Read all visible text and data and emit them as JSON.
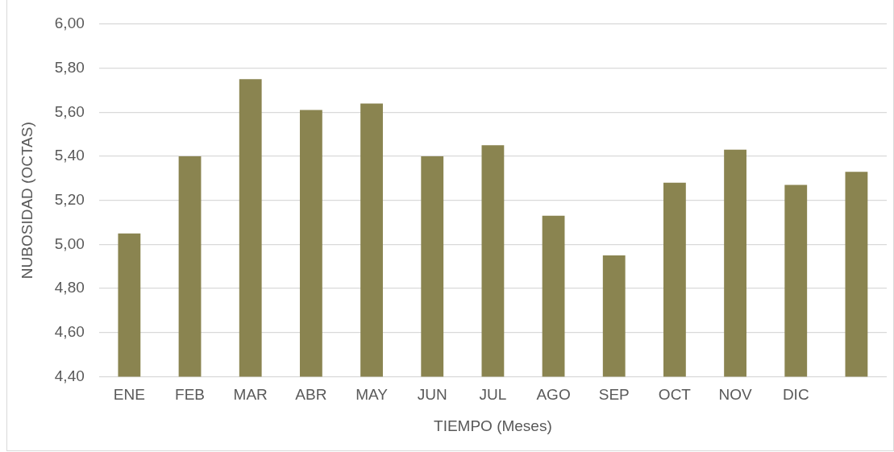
{
  "chart_data": {
    "type": "bar",
    "xlabel": "TIEMPO (Meses)",
    "ylabel": "NUBOSIDAD (OCTAS)",
    "categories": [
      "ENE",
      "FEB",
      "MAR",
      "ABR",
      "MAY",
      "JUN",
      "JUL",
      "AGO",
      "SEP",
      "OCT",
      "NOV",
      "DIC",
      null
    ],
    "values": [
      5.05,
      5.4,
      5.75,
      5.61,
      5.64,
      5.4,
      5.45,
      5.13,
      4.95,
      5.28,
      5.43,
      5.27,
      5.33
    ],
    "color": "#8a8450",
    "ylim": [
      4.4,
      6.0
    ],
    "yticks": [
      {
        "value": 4.4,
        "label": "4,40"
      },
      {
        "value": 4.6,
        "label": "4,60"
      },
      {
        "value": 4.8,
        "label": "4,80"
      },
      {
        "value": 5.0,
        "label": "5,00"
      },
      {
        "value": 5.2,
        "label": "5,20"
      },
      {
        "value": 5.4,
        "label": "5,40"
      },
      {
        "value": 5.6,
        "label": "5,60"
      },
      {
        "value": 5.8,
        "label": "5,80"
      },
      {
        "value": 6.0,
        "label": "6,00"
      }
    ],
    "grid": "y",
    "legend": false
  }
}
